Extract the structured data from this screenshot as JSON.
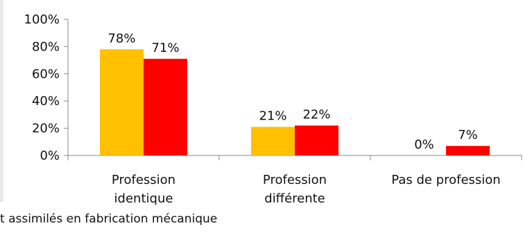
{
  "chart_data": {
    "type": "bar",
    "categories": [
      [
        "Profession",
        "identique"
      ],
      [
        "Profession",
        "différente"
      ],
      [
        "Pas de profession"
      ]
    ],
    "series": [
      {
        "values": [
          78,
          21,
          0
        ],
        "color": "#FFC000"
      },
      {
        "values": [
          71,
          22,
          7
        ],
        "color": "#FF0000"
      }
    ],
    "value_labels": [
      [
        "78%",
        "21%",
        "0%"
      ],
      [
        "71%",
        "22%",
        "7%"
      ]
    ],
    "yticks": [
      "0%",
      "20%",
      "40%",
      "60%",
      "80%",
      "100%"
    ],
    "ylim": [
      0,
      100
    ],
    "grid": false
  },
  "legend_caption": "t assimilés en fabrication mécanique"
}
